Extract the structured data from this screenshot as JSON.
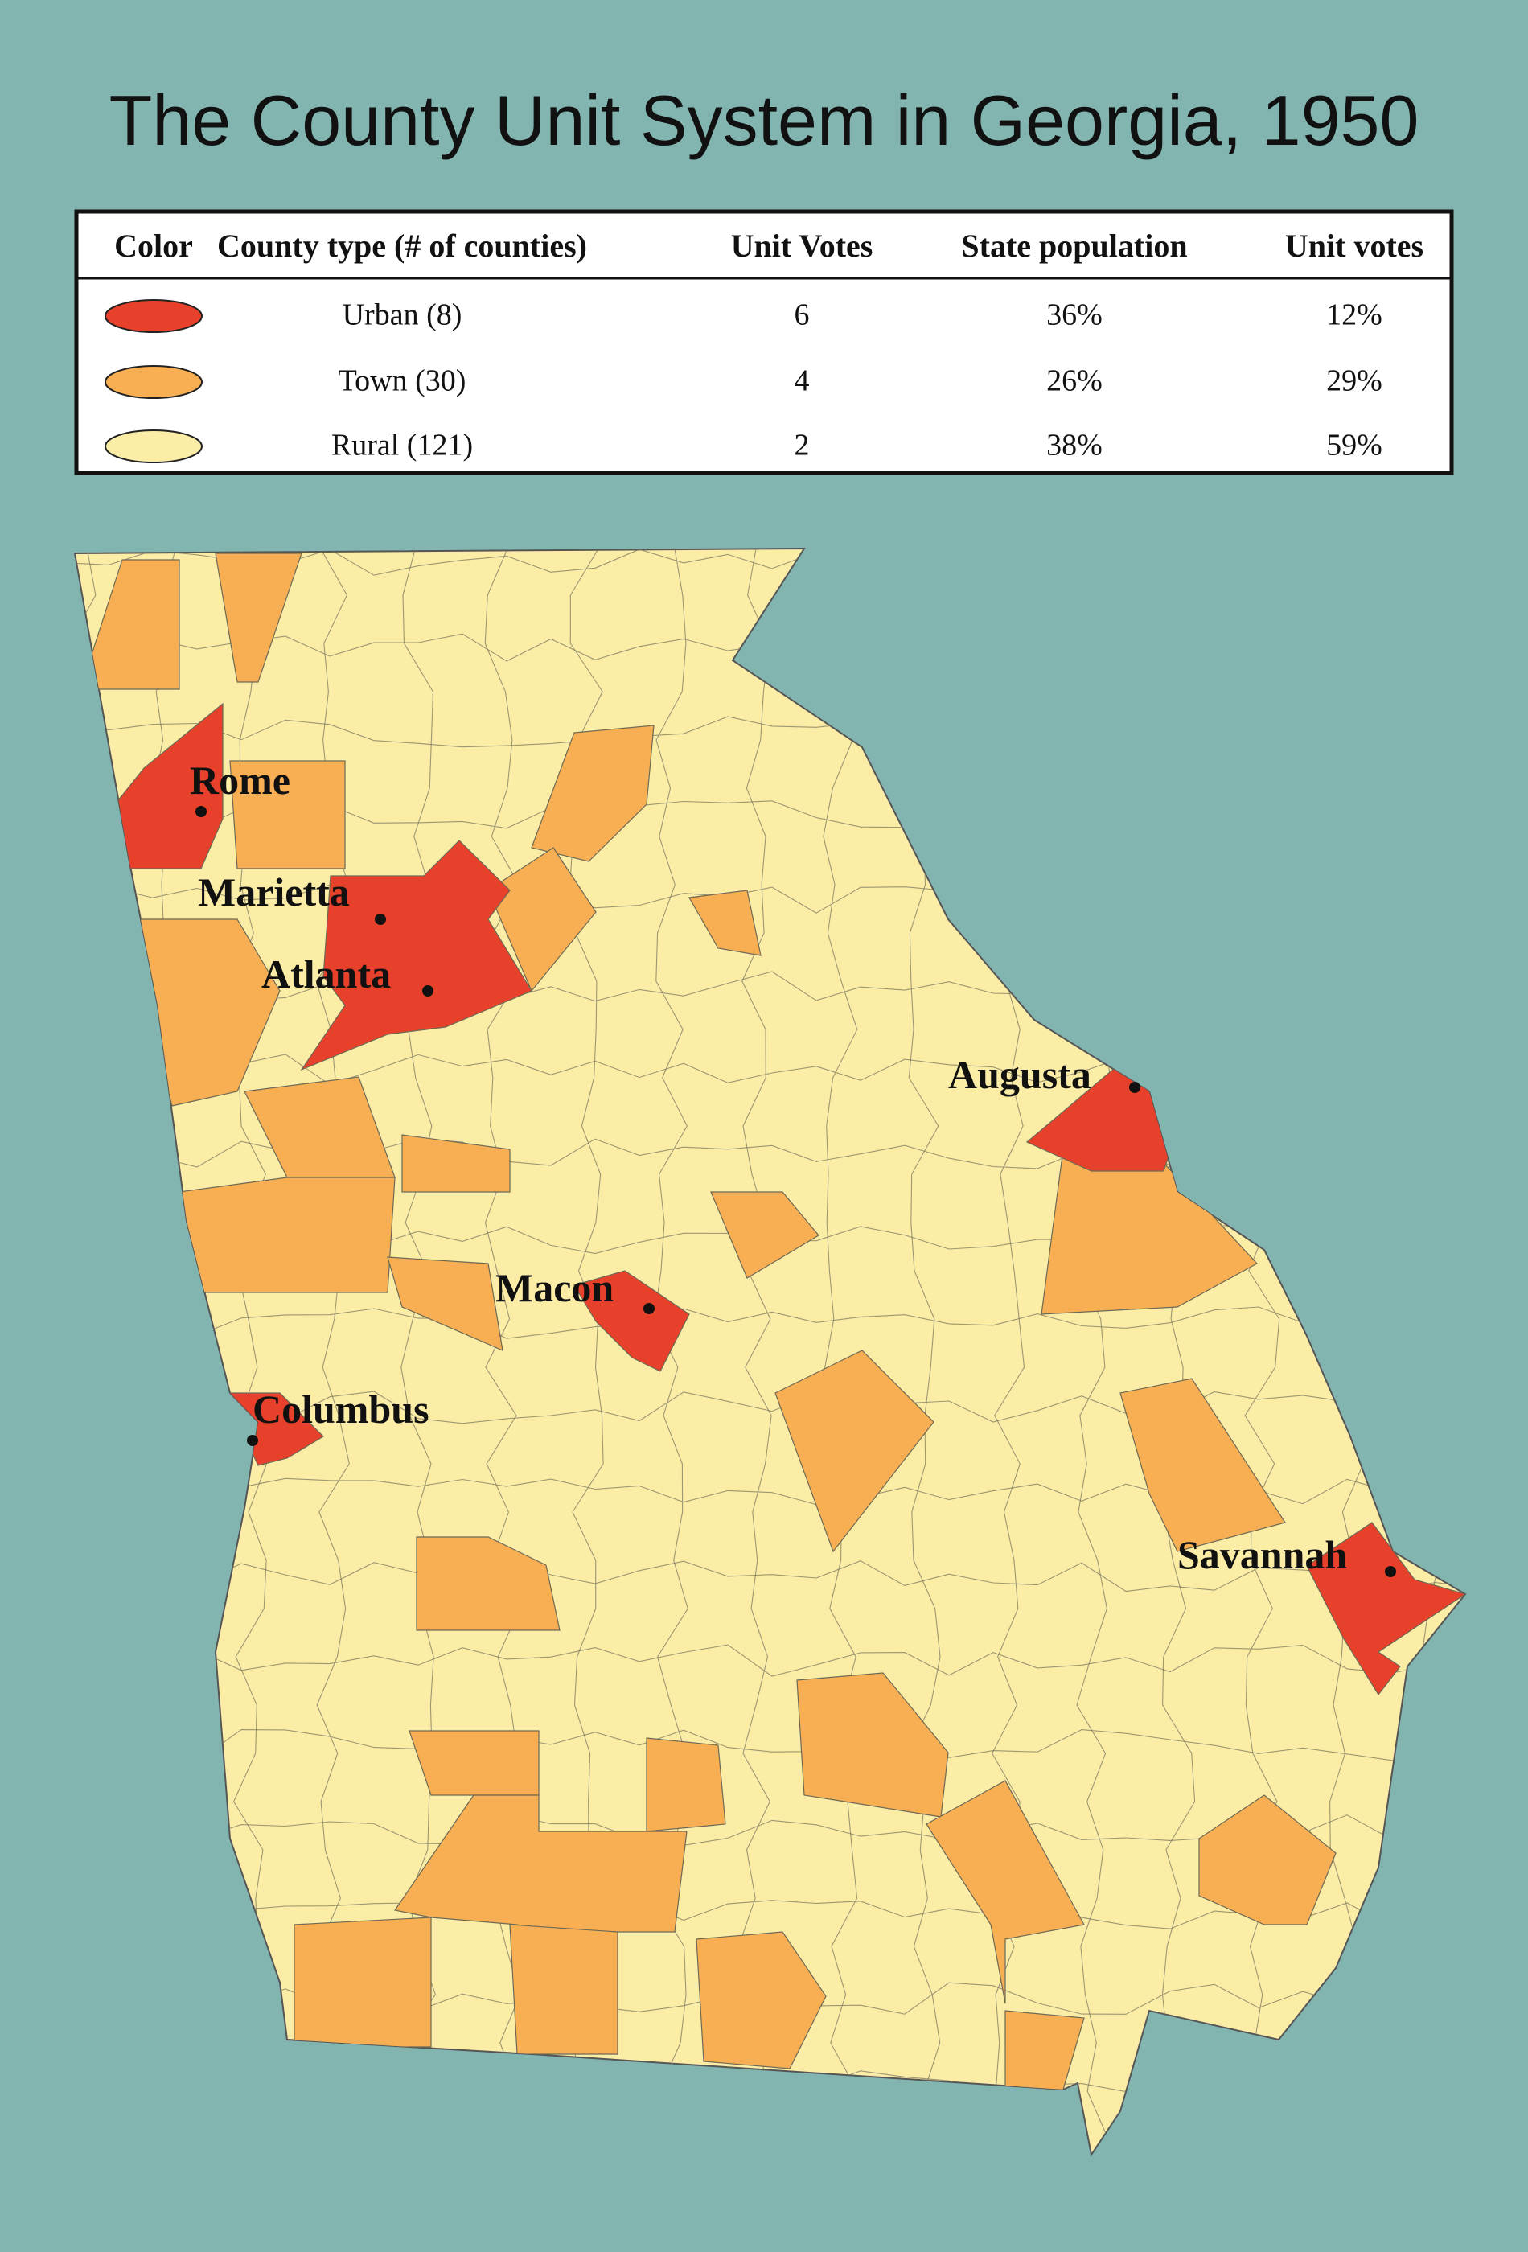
{
  "title": "The County Unit System in Georgia, 1950",
  "table": {
    "header": [
      "Color",
      "County type (# of counties)",
      "Unit Votes",
      "State population",
      "Unit votes"
    ],
    "rows": [
      {
        "color": "#e8412b",
        "type": "Urban (8)",
        "unit_votes": "6",
        "state_population": "36%",
        "unit_vote_share": "12%"
      },
      {
        "color": "#f8ae52",
        "type": "Town (30)",
        "unit_votes": "4",
        "state_population": "26%",
        "unit_vote_share": "29%"
      },
      {
        "color": "#fbeca6",
        "type": "Rural (121)",
        "unit_votes": "2",
        "state_population": "38%",
        "unit_vote_share": "59%"
      }
    ]
  },
  "cities": [
    "Rome",
    "Marietta",
    "Atlanta",
    "Augusta",
    "Macon",
    "Columbus",
    "Savannah"
  ]
}
